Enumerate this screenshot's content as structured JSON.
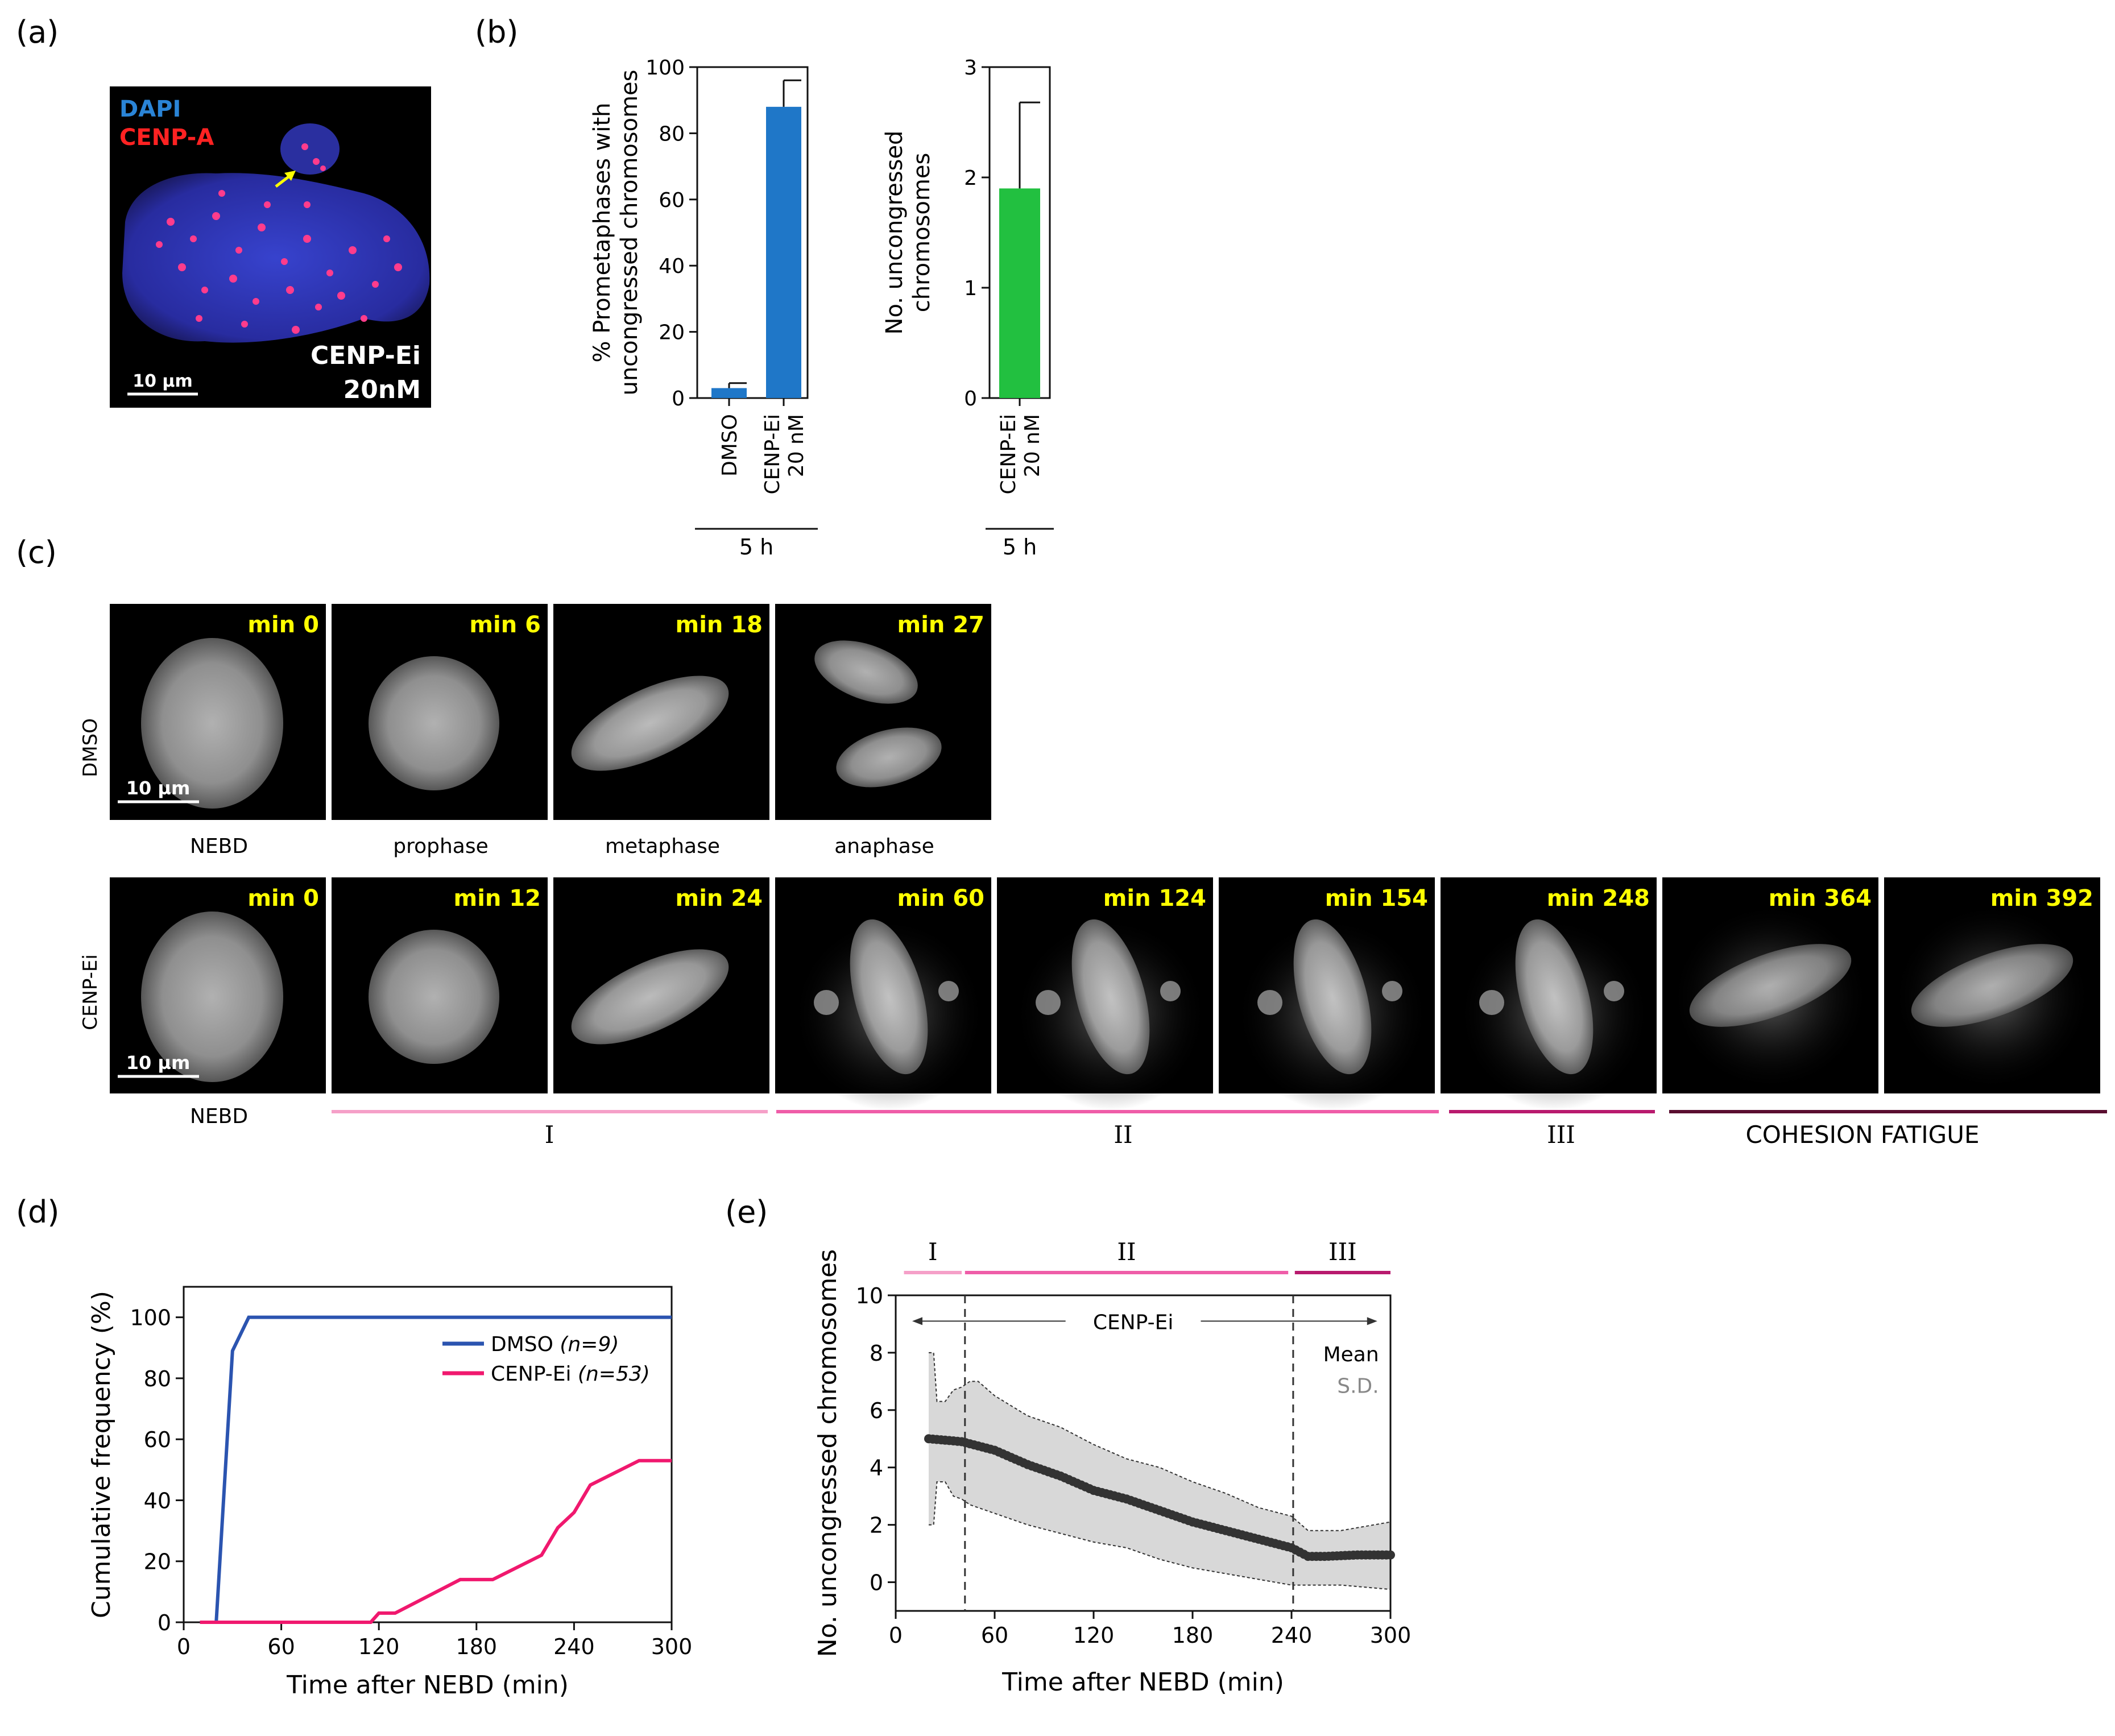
{
  "panel_labels": {
    "a": "(a)",
    "b": "(b)",
    "c": "(c)",
    "d": "(d)",
    "e": "(e)"
  },
  "colors": {
    "dapi": "#2a84d6",
    "cenp": "#ff2222",
    "yellow": "#ffff00",
    "blue_bar": "#1f77c8",
    "green_bar": "#22c040",
    "dmso_line": "#2b54b0",
    "cenp_line": "#f0186e",
    "stage1": "#f5a0c8",
    "stage2": "#ef5da8",
    "stage3": "#b81a6e",
    "stage4": "#5a0e30",
    "sd_fill": "#d8d8d8"
  },
  "panel_a": {
    "dapi": "DAPI",
    "cenp_a": "CENP-A",
    "condition_line1": "CENP-Ei",
    "condition_line2": "20nM",
    "scale": "10 µm"
  },
  "chart_data": [
    {
      "id": "b1",
      "type": "bar",
      "categories": [
        "DMSO",
        "CENP-Ei 20 nM"
      ],
      "category_lines": [
        [
          "DMSO"
        ],
        [
          "CENP-Ei",
          "20 nM"
        ]
      ],
      "values": [
        3,
        88
      ],
      "errors": [
        1.5,
        8
      ],
      "ylim": [
        0,
        100
      ],
      "yticks": [
        0,
        20,
        40,
        60,
        80,
        100
      ],
      "ylabel_lines": [
        "% Prometaphases with",
        "uncongressed chromosomes"
      ],
      "group_label": "5 h"
    },
    {
      "id": "b2",
      "type": "bar",
      "categories": [
        "CENP-Ei 20 nM"
      ],
      "category_lines": [
        [
          "CENP-Ei",
          "20 nM"
        ]
      ],
      "values": [
        1.9
      ],
      "errors": [
        0.78
      ],
      "ylim": [
        0,
        3
      ],
      "yticks": [
        0,
        1,
        2,
        3
      ],
      "ylabel_lines": [
        "No. uncongressed",
        "chromosomes"
      ],
      "group_label": "5 h"
    },
    {
      "id": "d",
      "type": "line",
      "xlabel": "Time after NEBD (min)",
      "ylabel": "Cumulative frequency (%)",
      "xlim": [
        0,
        300
      ],
      "ylim": [
        0,
        110
      ],
      "xticks": [
        0,
        60,
        120,
        180,
        240,
        300
      ],
      "yticks": [
        0,
        20,
        40,
        60,
        80,
        100
      ],
      "series": [
        {
          "name": "DMSO",
          "n_label": "(n=9)",
          "x": [
            10,
            20,
            30,
            40,
            300
          ],
          "y": [
            0,
            0,
            89,
            100,
            100
          ]
        },
        {
          "name": "CENP-Ei",
          "n_label": "(n=53)",
          "x": [
            10,
            115,
            120,
            130,
            170,
            190,
            220,
            230,
            240,
            250,
            280,
            300
          ],
          "y": [
            0,
            0,
            3,
            3,
            14,
            14,
            22,
            31,
            36,
            45,
            53,
            53
          ]
        }
      ]
    },
    {
      "id": "e",
      "type": "scatter",
      "xlabel": "Time after NEBD (min)",
      "ylabel": "No. uncongressed chromosomes",
      "xlim": [
        0,
        300
      ],
      "ylim": [
        -1,
        10
      ],
      "xticks": [
        0,
        60,
        120,
        180,
        240,
        300
      ],
      "yticks": [
        0,
        2,
        4,
        6,
        8,
        10
      ],
      "mean_label": "Mean",
      "sd_label": "S.D.",
      "range_label": "CENP-Ei",
      "dashed_x": [
        42,
        241
      ],
      "stages": [
        {
          "label": "I",
          "from": 5,
          "to": 40
        },
        {
          "label": "II",
          "from": 42,
          "to": 238
        },
        {
          "label": "III",
          "from": 242,
          "to": 300
        }
      ],
      "mean": {
        "x": [
          20,
          40,
          60,
          80,
          100,
          120,
          140,
          160,
          180,
          200,
          220,
          240,
          250,
          260,
          280,
          300
        ],
        "y": [
          5.0,
          4.9,
          4.6,
          4.1,
          3.7,
          3.2,
          2.9,
          2.5,
          2.1,
          1.8,
          1.5,
          1.2,
          0.9,
          0.9,
          0.95,
          0.95
        ]
      },
      "sd_upper": {
        "x": [
          20,
          23,
          25,
          30,
          35,
          40,
          45,
          50,
          60,
          80,
          100,
          120,
          140,
          160,
          180,
          200,
          220,
          240,
          250,
          270,
          300
        ],
        "y": [
          8.0,
          8.0,
          6.3,
          6.3,
          6.7,
          6.8,
          7.0,
          7.0,
          6.5,
          5.8,
          5.4,
          4.8,
          4.3,
          4.0,
          3.5,
          3.1,
          2.6,
          2.3,
          1.8,
          1.8,
          2.1
        ]
      },
      "sd_lower": {
        "x": [
          20,
          23,
          25,
          30,
          35,
          40,
          45,
          50,
          60,
          80,
          100,
          120,
          140,
          160,
          180,
          200,
          220,
          240,
          250,
          270,
          300
        ],
        "y": [
          2.0,
          2.0,
          3.5,
          3.5,
          3.0,
          2.9,
          2.7,
          2.6,
          2.4,
          2.0,
          1.7,
          1.4,
          1.2,
          0.8,
          0.5,
          0.3,
          0.1,
          -0.1,
          -0.1,
          -0.1,
          -0.25
        ]
      }
    }
  ],
  "panel_c": {
    "row1_label": "DMSO",
    "row2_label": "CENP-Ei",
    "scale": "10 µm",
    "dmso_times": [
      "min 0",
      "min 6",
      "min 18",
      "min 27"
    ],
    "dmso_phases": [
      "NEBD",
      "prophase",
      "metaphase",
      "anaphase"
    ],
    "cenp_times": [
      "min 0",
      "min 12",
      "min 24",
      "min 60",
      "min 124",
      "min 154",
      "min 248",
      "min 364",
      "min 392"
    ],
    "cenp_first_phase": "NEBD",
    "stage_labels": [
      "I",
      "II",
      "III",
      "COHESION FATIGUE"
    ]
  }
}
